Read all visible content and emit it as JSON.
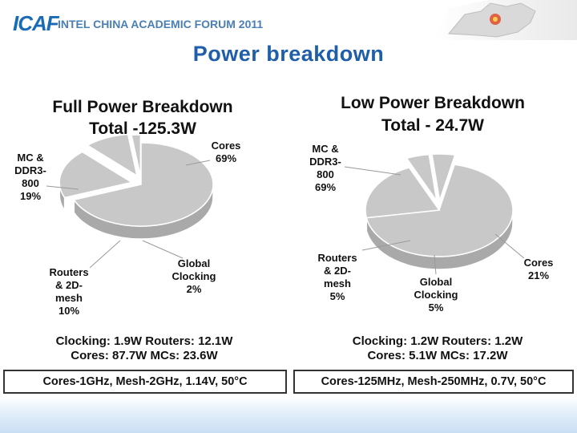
{
  "header": {
    "logo": "ICAF",
    "forum": "INTEL CHINA ACADEMIC FORUM 2011"
  },
  "slide_title": "Power breakdown",
  "colors": {
    "pie": "#c8c8c8",
    "title": "#1f5ea8",
    "logo": "#1a6bb5"
  },
  "chart_data": [
    {
      "type": "pie",
      "title": "Full Power Breakdown",
      "subtitle": "Total -125.3W",
      "categories": [
        "Cores",
        "MC & DDR3-800",
        "Routers & 2D-mesh",
        "Global Clocking"
      ],
      "values": [
        69,
        19,
        10,
        2
      ],
      "labels": [
        {
          "name": "Cores",
          "lines": [
            "Cores",
            "69%"
          ]
        },
        {
          "name": "MC & DDR3-800",
          "lines": [
            "MC &",
            "DDR3-",
            "800",
            "19%"
          ]
        },
        {
          "name": "Routers & 2D-mesh",
          "lines": [
            "Routers",
            "& 2D-",
            "mesh",
            "10%"
          ]
        },
        {
          "name": "Global Clocking",
          "lines": [
            "Global",
            "Clocking",
            "2%"
          ]
        }
      ],
      "stats": [
        "Clocking: 1.9W   Routers: 12.1W",
        "Cores: 87.7W    MCs: 23.6W"
      ],
      "conditions": "Cores-1GHz, Mesh-2GHz, 1.14V, 50°C"
    },
    {
      "type": "pie",
      "title": "Low Power Breakdown",
      "subtitle": "Total - 24.7W",
      "categories": [
        "MC & DDR3-800",
        "Cores",
        "Routers & 2D-mesh",
        "Global Clocking"
      ],
      "values": [
        69,
        21,
        5,
        5
      ],
      "labels": [
        {
          "name": "MC & DDR3-800",
          "lines": [
            "MC &",
            "DDR3-",
            "800",
            "69%"
          ]
        },
        {
          "name": "Cores",
          "lines": [
            "Cores",
            "21%"
          ]
        },
        {
          "name": "Routers & 2D-mesh",
          "lines": [
            "Routers",
            "& 2D-",
            "mesh",
            "5%"
          ]
        },
        {
          "name": "Global Clocking",
          "lines": [
            "Global",
            "Clocking",
            "5%"
          ]
        }
      ],
      "stats": [
        "Clocking: 1.2W    Routers: 1.2W",
        "Cores: 5.1W       MCs: 17.2W"
      ],
      "conditions": "Cores-125MHz, Mesh-250MHz, 0.7V, 50°C"
    }
  ]
}
